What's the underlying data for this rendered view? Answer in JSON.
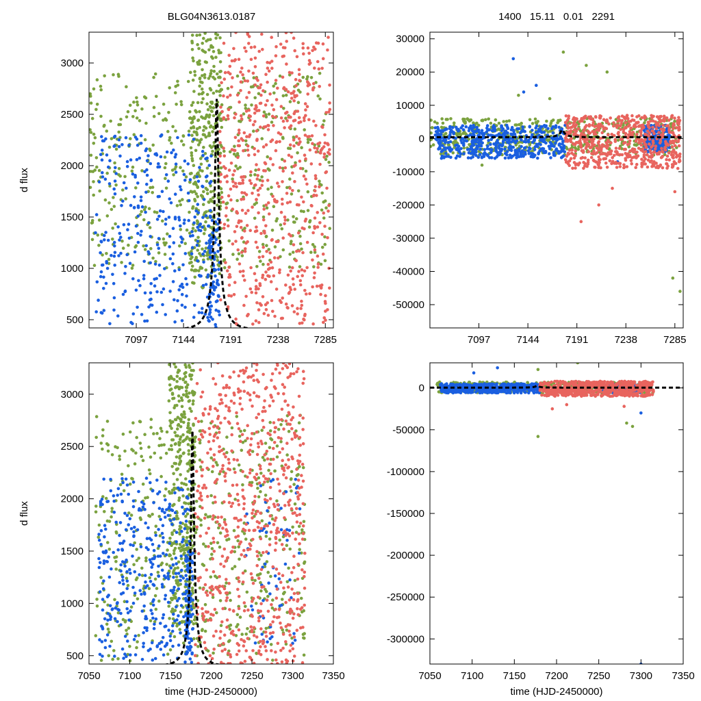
{
  "titles": {
    "left": "BLG04N3613.0187",
    "right": "1400   15.11   0.01   2291"
  },
  "colors": {
    "green": "#7ba23f",
    "blue": "#1a5fe0",
    "red": "#e8645e",
    "model": "#000000",
    "axis": "#000000"
  },
  "chart_data": [
    {
      "id": "top-left",
      "type": "scatter",
      "title": "BLG04N3613.0187",
      "xlabel": "",
      "ylabel": "d flux",
      "xlim": [
        7050,
        7293
      ],
      "ylim": [
        420,
        3300
      ],
      "xticks": [
        7097,
        7144,
        7191,
        7238,
        7285
      ],
      "yticks": [
        500,
        1000,
        1500,
        2000,
        2500,
        3000
      ],
      "model": {
        "type": "pspl",
        "t0": 7177,
        "peak": 2650,
        "tE": 16,
        "base": 400
      },
      "series": [
        {
          "name": "green",
          "color_key": "green",
          "segments": [
            [
              7050,
              7290,
              520,
              1000,
              2900
            ],
            [
              7150,
              7182,
              320,
              800,
              3300
            ]
          ]
        },
        {
          "name": "blue",
          "color_key": "blue",
          "segments": [
            [
              7055,
              7172,
              320,
              450,
              2300
            ],
            [
              7168,
              7180,
              80,
              420,
              1500
            ]
          ]
        },
        {
          "name": "red",
          "color_key": "red",
          "segments": [
            [
              7180,
              7290,
              620,
              450,
              3300
            ]
          ]
        }
      ]
    },
    {
      "id": "top-right",
      "type": "scatter",
      "title": "1400   15.11   0.01   2291",
      "xlabel": "",
      "ylabel": "",
      "xlim": [
        7050,
        7293
      ],
      "ylim": [
        -57000,
        32000
      ],
      "xticks": [
        7097,
        7144,
        7191,
        7238,
        7285
      ],
      "yticks": [
        30000,
        20000,
        10000,
        0,
        -10000,
        -20000,
        -30000,
        -40000,
        -50000
      ],
      "model": {
        "type": "pspl",
        "t0": 7177,
        "peak": 2650,
        "tE": 16,
        "base": 400
      },
      "series": [
        {
          "name": "green",
          "color_key": "green",
          "segments": [
            [
              7050,
              7290,
              520,
              -5000,
              6000
            ]
          ],
          "outliers": [
            [
              7200,
              22000
            ],
            [
              7220,
              20000
            ],
            [
              7178,
              26000
            ],
            [
              7165,
              12000
            ],
            [
              7290,
              -46000
            ],
            [
              7283,
              -42000
            ],
            [
              7135,
              13000
            ],
            [
              7100,
              -8000
            ]
          ]
        },
        {
          "name": "blue",
          "color_key": "blue",
          "segments": [
            [
              7055,
              7180,
              520,
              -6000,
              4000
            ],
            [
              7255,
              7280,
              200,
              -4000,
              4000
            ]
          ],
          "outliers": [
            [
              7130,
              24000
            ],
            [
              7140,
              14000
            ],
            [
              7152,
              16000
            ],
            [
              7230,
              -7000
            ]
          ]
        },
        {
          "name": "red",
          "color_key": "red",
          "segments": [
            [
              7180,
              7290,
              620,
              -9000,
              7000
            ]
          ],
          "outliers": [
            [
              7195,
              -25000
            ],
            [
              7212,
              -20000
            ],
            [
              7225,
              -15000
            ],
            [
              7285,
              -16000
            ]
          ]
        }
      ]
    },
    {
      "id": "bottom-left",
      "type": "scatter",
      "title": "",
      "xlabel": "time (HJD-2450000)",
      "ylabel": "d flux",
      "xlim": [
        7050,
        7350
      ],
      "ylim": [
        420,
        3300
      ],
      "xticks": [
        7050,
        7100,
        7150,
        7200,
        7250,
        7300,
        7350
      ],
      "yticks": [
        500,
        1000,
        1500,
        2000,
        2500,
        3000
      ],
      "model": {
        "type": "pspl",
        "t0": 7177,
        "peak": 2650,
        "tE": 16,
        "base": 400
      },
      "series": [
        {
          "name": "green",
          "color_key": "green",
          "segments": [
            [
              7058,
              7315,
              600,
              450,
              2800
            ],
            [
              7148,
              7180,
              340,
              800,
              3300
            ]
          ]
        },
        {
          "name": "blue",
          "color_key": "blue",
          "segments": [
            [
              7062,
              7175,
              360,
              450,
              2200
            ],
            [
              7168,
              7178,
              80,
              420,
              1500
            ],
            [
              7240,
              7310,
              60,
              450,
              2200
            ]
          ]
        },
        {
          "name": "red",
          "color_key": "red",
          "segments": [
            [
              7180,
              7315,
              680,
              420,
              3300
            ]
          ]
        }
      ]
    },
    {
      "id": "bottom-right",
      "type": "scatter",
      "title": "",
      "xlabel": "time (HJD-2450000)",
      "ylabel": "",
      "xlim": [
        7050,
        7350
      ],
      "ylim": [
        -330000,
        30000
      ],
      "xticks": [
        7050,
        7100,
        7150,
        7200,
        7250,
        7300,
        7350
      ],
      "yticks": [
        0,
        -50000,
        -100000,
        -150000,
        -200000,
        -250000,
        -300000
      ],
      "model": {
        "type": "pspl",
        "t0": 7177,
        "peak": 2650,
        "tE": 16,
        "base": 400
      },
      "series": [
        {
          "name": "green",
          "color_key": "green",
          "segments": [
            [
              7058,
              7315,
              520,
              -6000,
              7000
            ]
          ],
          "outliers": [
            [
              7178,
              -58000
            ],
            [
              7225,
              30000
            ],
            [
              7283,
              -42000
            ],
            [
              7290,
              -46000
            ],
            [
              7178,
              22000
            ]
          ]
        },
        {
          "name": "blue",
          "color_key": "blue",
          "segments": [
            [
              7062,
              7180,
              520,
              -6000,
              5000
            ],
            [
              7255,
              7300,
              160,
              -6000,
              5000
            ]
          ],
          "outliers": [
            [
              7300,
              -330000
            ],
            [
              7300,
              -30000
            ],
            [
              7130,
              24000
            ],
            [
              7102,
              18000
            ]
          ]
        },
        {
          "name": "red",
          "color_key": "red",
          "segments": [
            [
              7180,
              7315,
              640,
              -10000,
              8000
            ]
          ],
          "outliers": [
            [
              7195,
              -25000
            ],
            [
              7212,
              -20000
            ],
            [
              7280,
              -22000
            ]
          ]
        }
      ]
    }
  ]
}
